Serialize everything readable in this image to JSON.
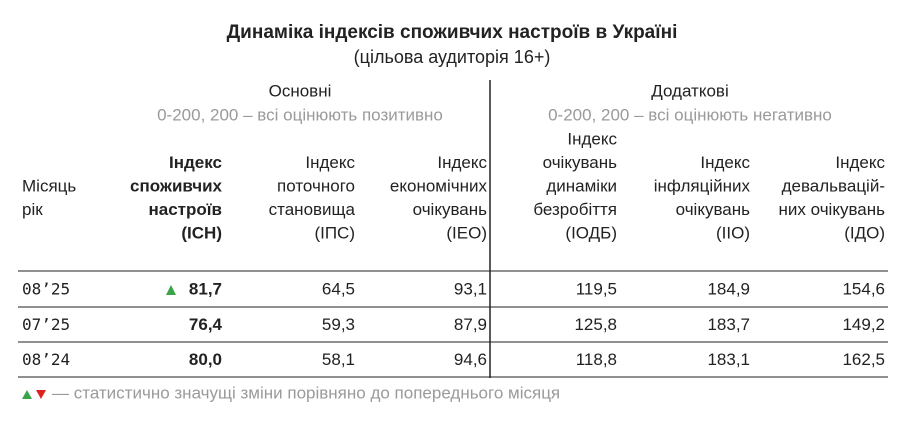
{
  "title": "Динаміка індексів споживчих настроїв в Україні",
  "subtitle": "(цільова аудиторія 16+)",
  "groups": [
    {
      "label": "Основні",
      "scale": "0-200, 200 – всі оцінюють позитивно"
    },
    {
      "label": "Додаткові",
      "scale": "0-200, 200 – всі оцінюють негативно"
    }
  ],
  "columns": [
    [
      "Місяць",
      "рік"
    ],
    [
      "Індекс",
      "споживчих",
      "настроїв",
      "(ІСН)"
    ],
    [
      "Індекс",
      "поточного",
      "становища",
      "(ІПС)"
    ],
    [
      "Індекс",
      "економічних",
      "очікувань",
      "(ІЕО)"
    ],
    [
      "Індекс",
      "очікувань",
      "динаміки",
      "безробіття",
      "(ІОДБ)"
    ],
    [
      "Індекс",
      "інфляційних",
      "очікувань",
      "(ІІО)"
    ],
    [
      "Індекс",
      "девальвацій-",
      "них очікувань",
      "(ІДО)"
    ]
  ],
  "rows": [
    {
      "cells": [
        "08’25",
        "81,7",
        "64,5",
        "93,1",
        "119,5",
        "184,9",
        "154,6"
      ],
      "trend": "up"
    },
    {
      "cells": [
        "07’25",
        "76,4",
        "59,3",
        "87,9",
        "125,8",
        "183,7",
        "149,2"
      ]
    },
    {
      "cells": [
        "08’24",
        "80,0",
        "58,1",
        "94,6",
        "118,8",
        "183,1",
        "162,5"
      ]
    }
  ],
  "note": "— статистично значущі зміни порівняно до попереднього місяця"
}
